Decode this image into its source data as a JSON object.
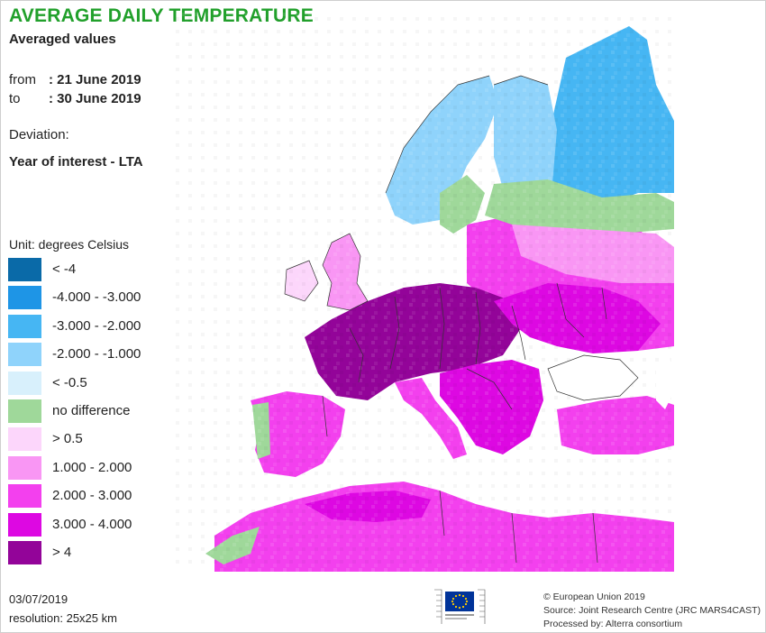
{
  "header": {
    "title": "AVERAGE DAILY TEMPERATURE",
    "subtitle": "Averaged values"
  },
  "period": {
    "from_label": "from",
    "from_value": ": 21 June 2019",
    "to_label": "to",
    "to_value": ": 30 June 2019"
  },
  "deviation": {
    "label": "Deviation:",
    "value": "Year of interest - LTA"
  },
  "legend": {
    "unit": "Unit: degrees Celsius",
    "items": [
      {
        "label": "< -4",
        "color": "#0a6aa8"
      },
      {
        "label": "-4.000 - -3.000",
        "color": "#1e95e6"
      },
      {
        "label": "-3.000 - -2.000",
        "color": "#46b6f3"
      },
      {
        "label": "-2.000 - -1.000",
        "color": "#8fd3fb"
      },
      {
        "label": "< -0.5",
        "color": "#d8f0fc"
      },
      {
        "label": "no difference",
        "color": "#9fd89a"
      },
      {
        "label": "> 0.5",
        "color": "#fcd6fb"
      },
      {
        "label": "1.000 - 2.000",
        "color": "#f996f4"
      },
      {
        "label": "2.000 - 3.000",
        "color": "#f340ee"
      },
      {
        "label": "3.000 - 4.000",
        "color": "#dd08e2"
      },
      {
        "label": "> 4",
        "color": "#930499"
      }
    ]
  },
  "footer": {
    "date": "03/07/2019",
    "resolution": "resolution: 25x25 km",
    "credit_1": "© European Union 2019",
    "credit_2": "Source: Joint Research Centre (JRC MARS4CAST)",
    "credit_3": "Processed by: Alterra consortium"
  },
  "colors": {
    "title_green": "#21a02b",
    "sea": "#ffffff",
    "border": "#333333",
    "eu_blue": "#003399",
    "eu_gold": "#ffcc00"
  }
}
